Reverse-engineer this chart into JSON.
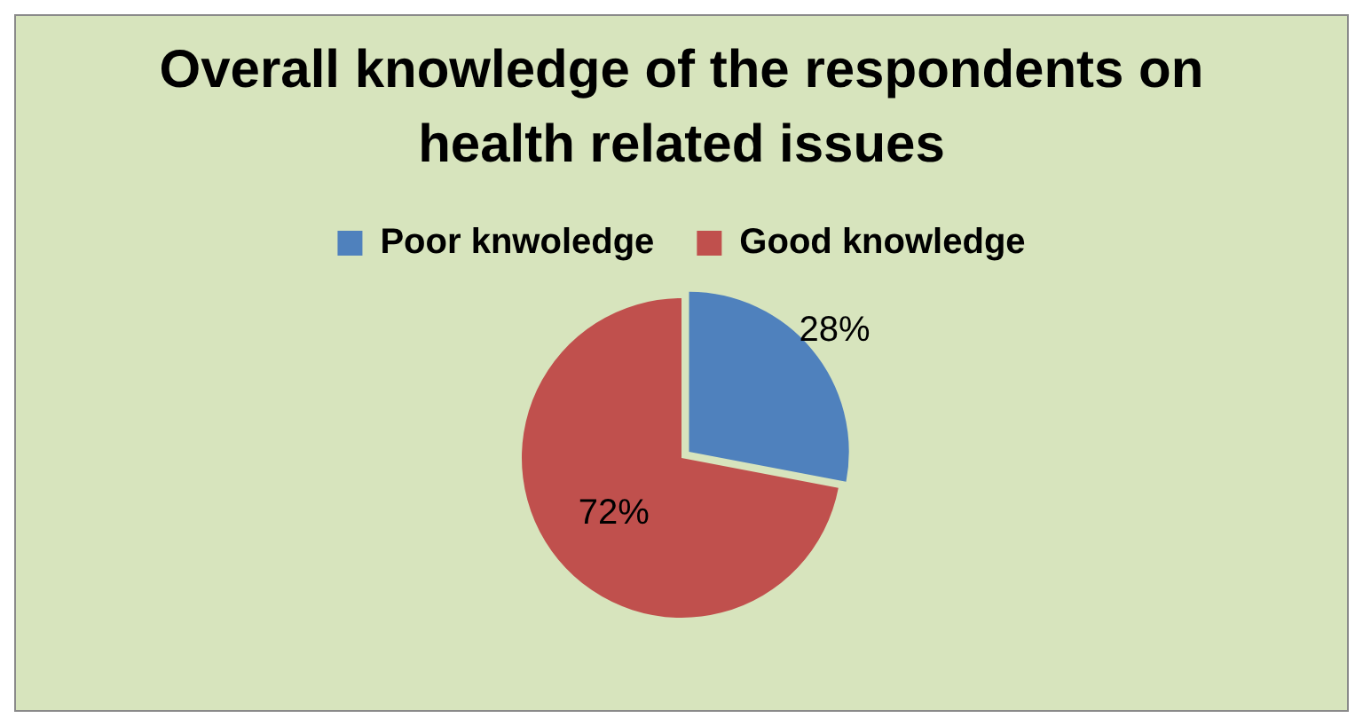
{
  "chart_data": {
    "type": "pie",
    "title": "Overall knowledge of the respondents on health related issues",
    "categories": [
      "Poor knwoledge",
      "Good knowledge"
    ],
    "values": [
      28,
      72
    ],
    "colors": [
      "#4f81bd",
      "#c0504d"
    ],
    "value_labels": [
      "28%",
      "72%"
    ],
    "legend": "top"
  }
}
